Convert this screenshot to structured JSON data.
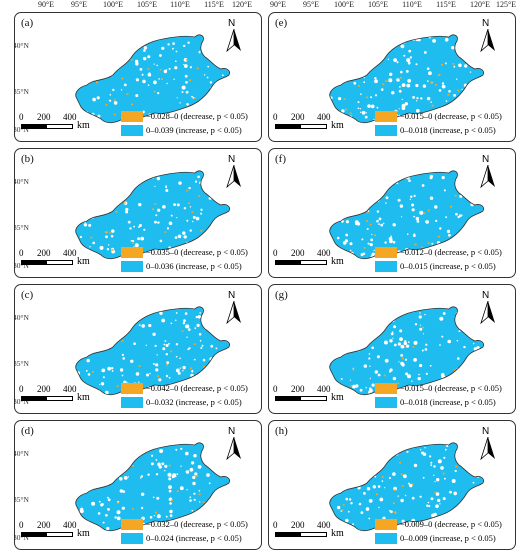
{
  "longitude_labels": [
    "90°E",
    "95°E",
    "100°E",
    "105°E",
    "110°E",
    "115°E",
    "120°E",
    "125°E"
  ],
  "latitude_labels": [
    "40°N",
    "35°N",
    "30°N"
  ],
  "north_label": "N",
  "scale_bar": {
    "ticks": [
      "0",
      "200",
      "400"
    ],
    "unit": "km"
  },
  "colors": {
    "decrease": "#f5a623",
    "increase": "#1fbcf0",
    "outline": "#333333"
  },
  "panels": [
    {
      "label": "(a)",
      "decrease": "−0.028–0 (decrease, p < 0.05)",
      "increase": "0–0.039 (increase, p < 0.05)"
    },
    {
      "label": "(b)",
      "decrease": "−0.035–0 (decrease, p < 0.05)",
      "increase": "0–0.036 (increase, p < 0.05)"
    },
    {
      "label": "(c)",
      "decrease": "−0.042–0 (decrease, p < 0.05)",
      "increase": "0–0.032 (increase, p < 0.05)"
    },
    {
      "label": "(d)",
      "decrease": "−0.032–0 (decrease, p < 0.05)",
      "increase": "0–0.024 (increase, p < 0.05)"
    },
    {
      "label": "(e)",
      "decrease": "−0.015–0 (decrease, p < 0.05)",
      "increase": "0–0.018 (increase, p < 0.05)"
    },
    {
      "label": "(f)",
      "decrease": "−0.012–0 (decrease, p < 0.05)",
      "increase": "0–0.015 (increase, p < 0.05)"
    },
    {
      "label": "(g)",
      "decrease": "−0.015–0 (decrease, p < 0.05)",
      "increase": "0–0.018 (increase, p < 0.05)"
    },
    {
      "label": "(h)",
      "decrease": "−0.009–0 (decrease, p < 0.05)",
      "increase": "0–0.009 (increase, p < 0.05)"
    }
  ]
}
